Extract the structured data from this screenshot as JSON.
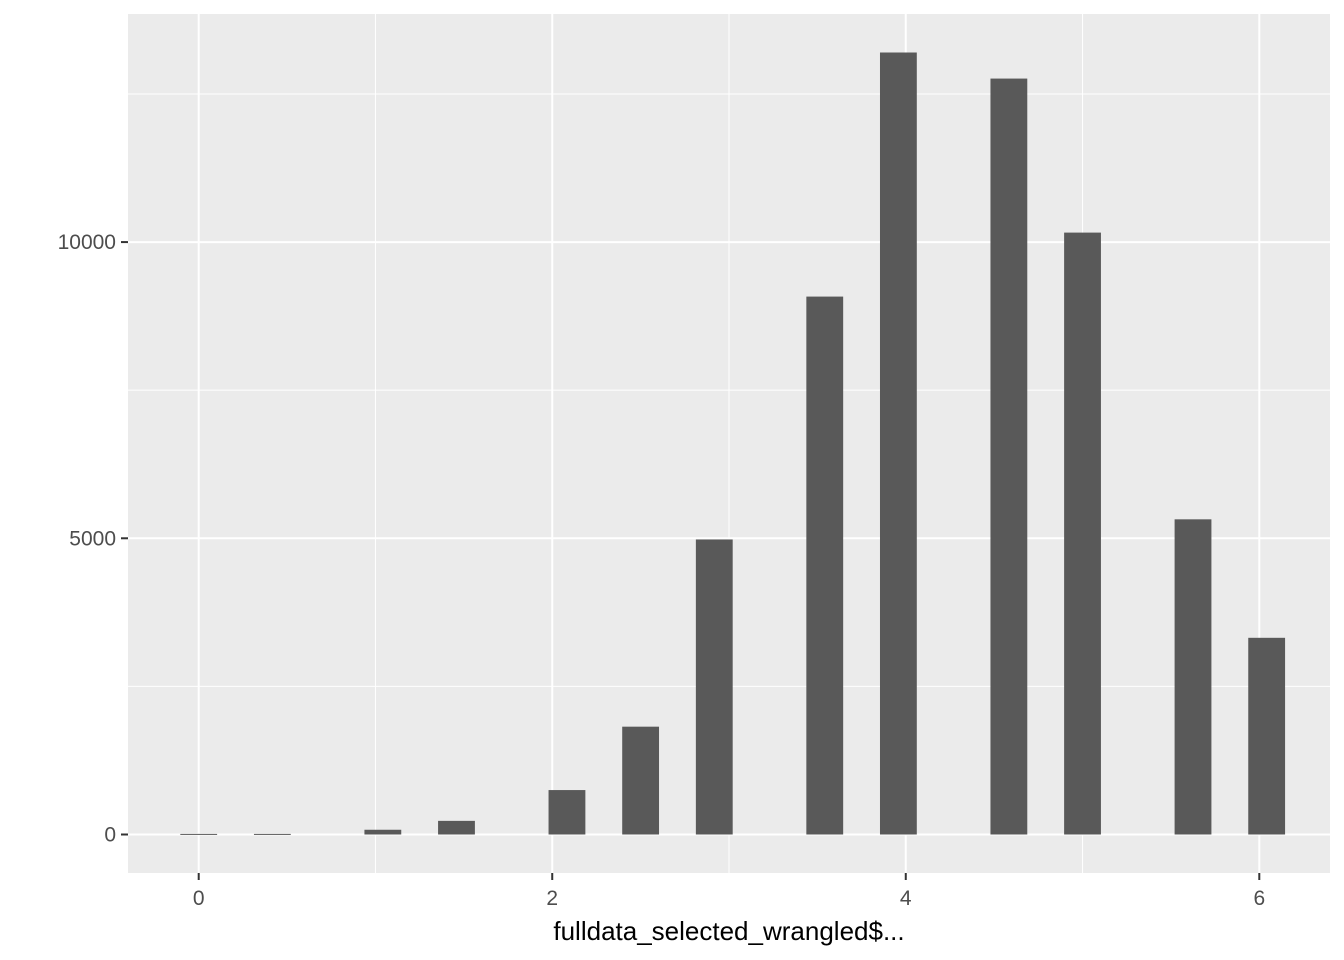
{
  "chart_data": {
    "type": "bar",
    "title": "",
    "xlabel": "fulldata_selected_wrangled$...",
    "ylabel": "",
    "x": [
      0.0,
      0.4167,
      1.0417,
      1.4583,
      2.0833,
      2.5,
      2.9167,
      3.5417,
      3.9583,
      4.5833,
      5.0,
      5.625,
      6.0417
    ],
    "values": [
      10,
      10,
      80,
      230,
      750,
      1820,
      4980,
      9080,
      13200,
      12760,
      10160,
      5320,
      3320
    ],
    "bar_width": 0.2083,
    "xlim": [
      -0.4,
      6.4
    ],
    "ylim": [
      -650,
      13850
    ],
    "x_ticks": [
      0,
      2,
      4,
      6
    ],
    "y_ticks": [
      0,
      5000,
      10000
    ],
    "x_minor_ticks": [
      1,
      3,
      5
    ],
    "y_minor_ticks": [
      2500,
      7500,
      12500
    ],
    "grid": true,
    "legend": "none",
    "colors": {
      "panel_background": "#ebebeb",
      "grid": "#ffffff",
      "bar_fill": "#595959",
      "tick_text": "#4d4d4d",
      "tick_mark": "#333333",
      "axis_title": "#000000"
    }
  }
}
